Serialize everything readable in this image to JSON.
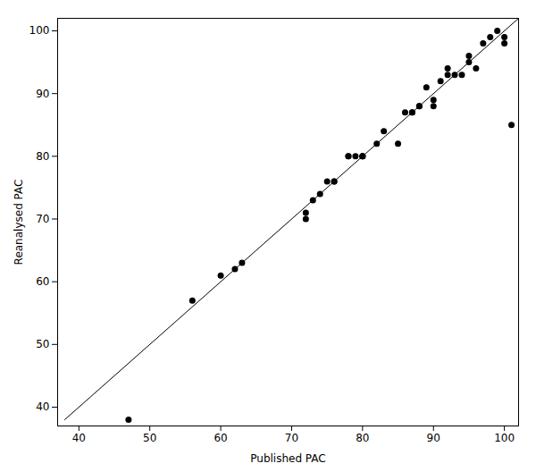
{
  "chart_data": {
    "type": "scatter",
    "xlabel": "Published PAC",
    "ylabel": "Reanalysed PAC",
    "xlim": [
      37,
      102
    ],
    "ylim": [
      37,
      102
    ],
    "xticks": [
      40,
      50,
      60,
      70,
      80,
      90,
      100
    ],
    "yticks": [
      40,
      50,
      60,
      70,
      80,
      90,
      100
    ],
    "series": [
      {
        "type": "line",
        "color": "black",
        "x": [
          38,
          102
        ],
        "values": [
          38,
          102
        ]
      },
      {
        "type": "scatter",
        "color": "black",
        "x": [
          47,
          56,
          60,
          62,
          63,
          72,
          72,
          73,
          74,
          75,
          76,
          76,
          78,
          78,
          79,
          80,
          80,
          80,
          82,
          83,
          85,
          86,
          87,
          87,
          88,
          88,
          89,
          90,
          90,
          91,
          92,
          92,
          93,
          94,
          95,
          95,
          96,
          97,
          98,
          99,
          100,
          100,
          101
        ],
        "values": [
          38,
          57,
          61,
          62,
          63,
          70,
          71,
          73,
          74,
          76,
          76,
          76,
          80,
          80,
          80,
          80,
          80,
          80,
          82,
          84,
          82,
          87,
          87,
          87,
          88,
          88,
          91,
          88,
          89,
          92,
          93,
          94,
          93,
          93,
          95,
          96,
          94,
          98,
          99,
          100,
          98,
          99,
          85
        ]
      }
    ]
  }
}
